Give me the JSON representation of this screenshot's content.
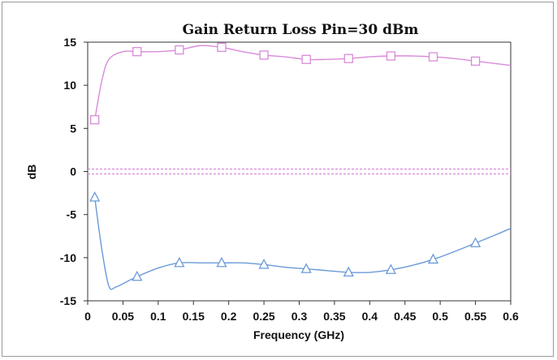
{
  "chart_data": {
    "type": "line",
    "title": "Gain Return Loss Pin=30 dBm",
    "xlabel": "Frequency (GHz)",
    "ylabel": "dB",
    "xlim": [
      0,
      0.6
    ],
    "ylim": [
      -15,
      15
    ],
    "x_ticks": [
      "0",
      "0.05",
      "0.1",
      "0.15",
      "0.2",
      "0.25",
      "0.3",
      "0.35",
      "0.4",
      "0.45",
      "0.5",
      "0.55",
      "0.6"
    ],
    "y_ticks": [
      "15",
      "10",
      "5",
      "0",
      "-5",
      "-10",
      "-15"
    ],
    "grid": false,
    "legend": "none",
    "series": [
      {
        "color": "#d98ad9",
        "marker": "square",
        "curve": [
          [
            0.01,
            6.0
          ],
          [
            0.02,
            10.5
          ],
          [
            0.03,
            13.0
          ],
          [
            0.05,
            13.9
          ],
          [
            0.07,
            13.9
          ],
          [
            0.1,
            13.9
          ],
          [
            0.13,
            14.1
          ],
          [
            0.16,
            14.6
          ],
          [
            0.19,
            14.4
          ],
          [
            0.22,
            13.9
          ],
          [
            0.25,
            13.5
          ],
          [
            0.28,
            13.3
          ],
          [
            0.31,
            13.0
          ],
          [
            0.34,
            13.0
          ],
          [
            0.37,
            13.1
          ],
          [
            0.4,
            13.3
          ],
          [
            0.43,
            13.4
          ],
          [
            0.46,
            13.4
          ],
          [
            0.49,
            13.3
          ],
          [
            0.52,
            13.1
          ],
          [
            0.55,
            12.8
          ],
          [
            0.58,
            12.5
          ],
          [
            0.6,
            12.3
          ]
        ],
        "markers": [
          [
            0.01,
            6.0
          ],
          [
            0.07,
            13.9
          ],
          [
            0.13,
            14.1
          ],
          [
            0.19,
            14.4
          ],
          [
            0.25,
            13.5
          ],
          [
            0.31,
            13.0
          ],
          [
            0.37,
            13.1
          ],
          [
            0.43,
            13.4
          ],
          [
            0.49,
            13.3
          ],
          [
            0.55,
            12.8
          ]
        ]
      },
      {
        "color": "#6a9ad8",
        "marker": "triangle",
        "curve": [
          [
            0.01,
            -3.0
          ],
          [
            0.02,
            -9.0
          ],
          [
            0.03,
            -13.3
          ],
          [
            0.04,
            -13.4
          ],
          [
            0.055,
            -12.8
          ],
          [
            0.07,
            -12.2
          ],
          [
            0.1,
            -11.2
          ],
          [
            0.13,
            -10.6
          ],
          [
            0.16,
            -10.6
          ],
          [
            0.19,
            -10.6
          ],
          [
            0.22,
            -10.6
          ],
          [
            0.25,
            -10.8
          ],
          [
            0.28,
            -11.1
          ],
          [
            0.31,
            -11.3
          ],
          [
            0.34,
            -11.5
          ],
          [
            0.37,
            -11.7
          ],
          [
            0.4,
            -11.7
          ],
          [
            0.43,
            -11.4
          ],
          [
            0.46,
            -10.9
          ],
          [
            0.49,
            -10.2
          ],
          [
            0.52,
            -9.3
          ],
          [
            0.55,
            -8.3
          ],
          [
            0.58,
            -7.3
          ],
          [
            0.6,
            -6.6
          ]
        ],
        "markers": [
          [
            0.01,
            -3.0
          ],
          [
            0.07,
            -12.2
          ],
          [
            0.13,
            -10.6
          ],
          [
            0.19,
            -10.6
          ],
          [
            0.25,
            -10.8
          ],
          [
            0.31,
            -11.3
          ],
          [
            0.37,
            -11.7
          ],
          [
            0.43,
            -11.4
          ],
          [
            0.49,
            -10.2
          ],
          [
            0.55,
            -8.3
          ]
        ]
      },
      {
        "color": "#d98ad9",
        "marker": "none",
        "style": "double-dashed",
        "values": [
          [
            0,
            0.0
          ],
          [
            0.6,
            0.0
          ]
        ]
      }
    ]
  }
}
